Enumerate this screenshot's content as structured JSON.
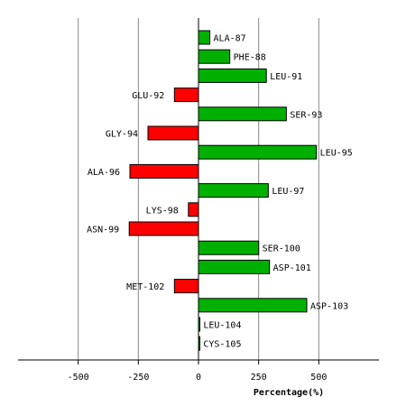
{
  "chart_data": {
    "type": "bar",
    "orientation": "horizontal",
    "categories": [
      "ALA-87",
      "PHE-88",
      "LEU-91",
      "GLU-92",
      "SER-93",
      "GLY-94",
      "LEU-95",
      "ALA-96",
      "LEU-97",
      "LYS-98",
      "ASN-99",
      "SER-100",
      "ASP-101",
      "MET-102",
      "ASP-103",
      "LEU-104",
      "CYS-105"
    ],
    "values": [
      47,
      130,
      282,
      -100,
      365,
      -210,
      490,
      -285,
      290,
      -42,
      -288,
      250,
      295,
      -100,
      450,
      5,
      5
    ],
    "xlabel": "Percentage(%)",
    "xlim": [
      -750,
      750
    ],
    "xticks": [
      -500,
      -250,
      0,
      250,
      500
    ],
    "xtick_labels": [
      "-500",
      "-250",
      "0",
      "250",
      "500"
    ],
    "grid": "vertical",
    "colors": {
      "positive": "#00b000",
      "negative": "#ff0000",
      "outline": "#000000",
      "grid": "#888888"
    }
  }
}
